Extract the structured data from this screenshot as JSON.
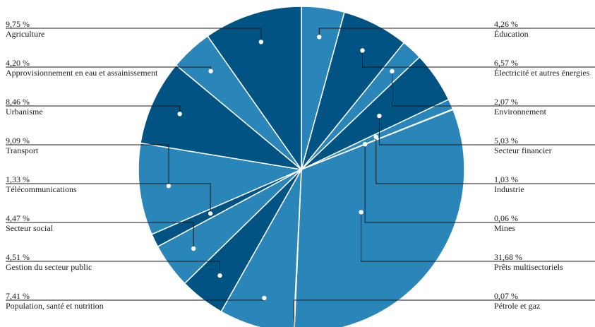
{
  "chart_data": {
    "type": "pie",
    "title": "",
    "legend_placement": "labels around pie (left and right columns)",
    "slices": [
      {
        "label": "Éducation",
        "pct_label": "4,26 %",
        "value": 4.26,
        "color": "#2a86b8"
      },
      {
        "label": "Électricité et autres énergies",
        "pct_label": "6,57 %",
        "value": 6.57,
        "color": "#005382"
      },
      {
        "label": "Environnement",
        "pct_label": "2,07 %",
        "value": 2.07,
        "color": "#2a86b8"
      },
      {
        "label": "Secteur financier",
        "pct_label": "5,03 %",
        "value": 5.03,
        "color": "#005382"
      },
      {
        "label": "Industrie",
        "pct_label": "1,03 %",
        "value": 1.03,
        "color": "#2a86b8"
      },
      {
        "label": "Mines",
        "pct_label": "0,06 %",
        "value": 0.06,
        "color": "#005382"
      },
      {
        "label": "Prêts multisectoriels",
        "pct_label": "31,68 %",
        "value": 31.68,
        "color": "#2a86b8"
      },
      {
        "label": "Pétrole et gaz",
        "pct_label": "0,07 %",
        "value": 0.07,
        "color": "#005382"
      },
      {
        "label": "Population, santé et nutrition",
        "pct_label": "7,41 %",
        "value": 7.41,
        "color": "#2a86b8"
      },
      {
        "label": "Gestion du secteur public",
        "pct_label": "4,51 %",
        "value": 4.51,
        "color": "#005382"
      },
      {
        "label": "Secteur social",
        "pct_label": "4,47 %",
        "value": 4.47,
        "color": "#2a86b8"
      },
      {
        "label": "Télécommunications",
        "pct_label": "1,33 %",
        "value": 1.33,
        "color": "#005382"
      },
      {
        "label": "Transport",
        "pct_label": "9,09 %",
        "value": 9.09,
        "color": "#2a86b8"
      },
      {
        "label": "Urbanisme",
        "pct_label": "8,46 %",
        "value": 8.46,
        "color": "#005382"
      },
      {
        "label": "Approvisionnement en eau et assainissement",
        "pct_label": "4,20 %",
        "value": 4.2,
        "color": "#2a86b8"
      },
      {
        "label": "Agriculture",
        "pct_label": "9,75 %",
        "value": 9.75,
        "color": "#005382"
      }
    ],
    "left_column": [
      "Agriculture",
      "Approvisionnement en eau et assainissement",
      "Urbanisme",
      "Transport",
      "Télécommunications",
      "Secteur social",
      "Gestion du secteur public",
      "Population, santé et nutrition"
    ],
    "right_column": [
      "Éducation",
      "Électricité et autres énergies",
      "Environnement",
      "Secteur financier",
      "Industrie",
      "Mines",
      "Prêts multisectoriels",
      "Pétrole et gaz"
    ]
  }
}
